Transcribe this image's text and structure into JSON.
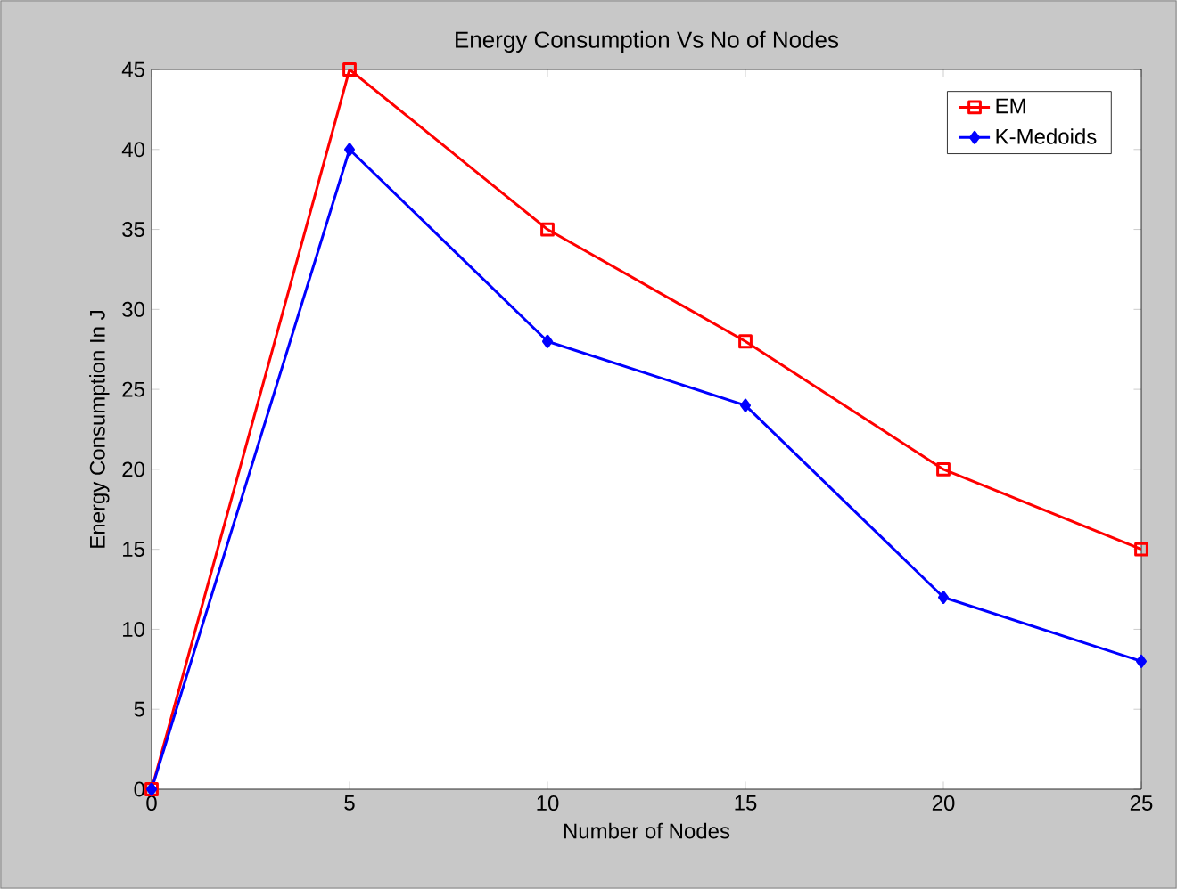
{
  "chart_data": {
    "type": "line",
    "title": "Energy Consumption Vs No of Nodes",
    "xlabel": "Number of Nodes",
    "ylabel": "Energy Consumption In J",
    "x": [
      0,
      5,
      10,
      15,
      20,
      25
    ],
    "series": [
      {
        "name": "EM",
        "color": "#ff0000",
        "marker": "square",
        "values": [
          0,
          45,
          35,
          28,
          20,
          15
        ]
      },
      {
        "name": "K-Medoids",
        "color": "#0000ff",
        "marker": "diamond",
        "values": [
          0,
          40,
          28,
          24,
          12,
          8
        ]
      }
    ],
    "xlim": [
      0,
      25
    ],
    "ylim": [
      0,
      45
    ],
    "xticks": [
      0,
      5,
      10,
      15,
      20,
      25
    ],
    "yticks": [
      0,
      5,
      10,
      15,
      20,
      25,
      30,
      35,
      40,
      45
    ],
    "grid": false,
    "legend": "top right",
    "line_style": "solid"
  }
}
